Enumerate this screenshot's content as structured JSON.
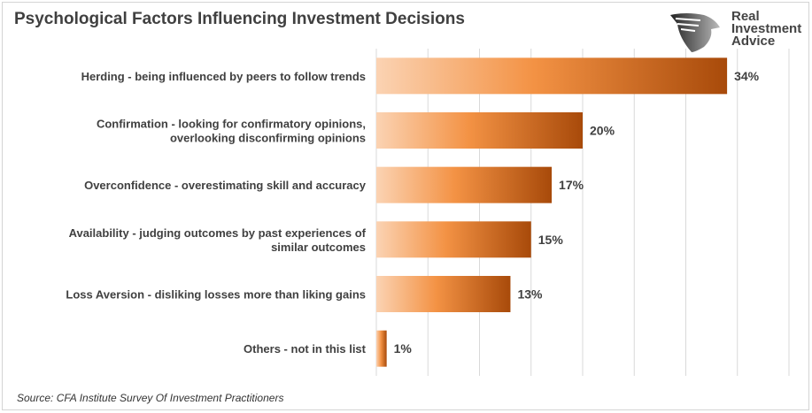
{
  "chart_data": {
    "type": "bar",
    "orientation": "horizontal",
    "title": "Psychological Factors Influencing Investment Decisions",
    "source": "Source: CFA Institute Survey Of Investment Practitioners",
    "categories": [
      [
        "Herding - being influenced by peers to follow trends"
      ],
      [
        "Confirmation - looking for confirmatory opinions,",
        "overlooking disconfirming opinions"
      ],
      [
        "Overconfidence - overestimating skill and accuracy"
      ],
      [
        "Availability - judging outcomes by past experiences of",
        "similar outcomes"
      ],
      [
        "Loss Aversion - disliking losses more than liking gains"
      ],
      [
        "Others - not in this list"
      ]
    ],
    "values": [
      34,
      20,
      17,
      15,
      13,
      1
    ],
    "data_labels": [
      "34%",
      "20%",
      "17%",
      "15%",
      "13%",
      "1%"
    ],
    "xlim": [
      0,
      40
    ],
    "grid_step": 5,
    "grid": true,
    "legend": "none",
    "colors": {
      "gradient_start": "#fbd3b3",
      "gradient_mid": "#f39244",
      "gradient_end": "#a84a0a",
      "grid": "#d9d9d9",
      "text": "#404040"
    }
  },
  "logo": {
    "lines": [
      "Real",
      "Investment",
      "Advice"
    ]
  }
}
